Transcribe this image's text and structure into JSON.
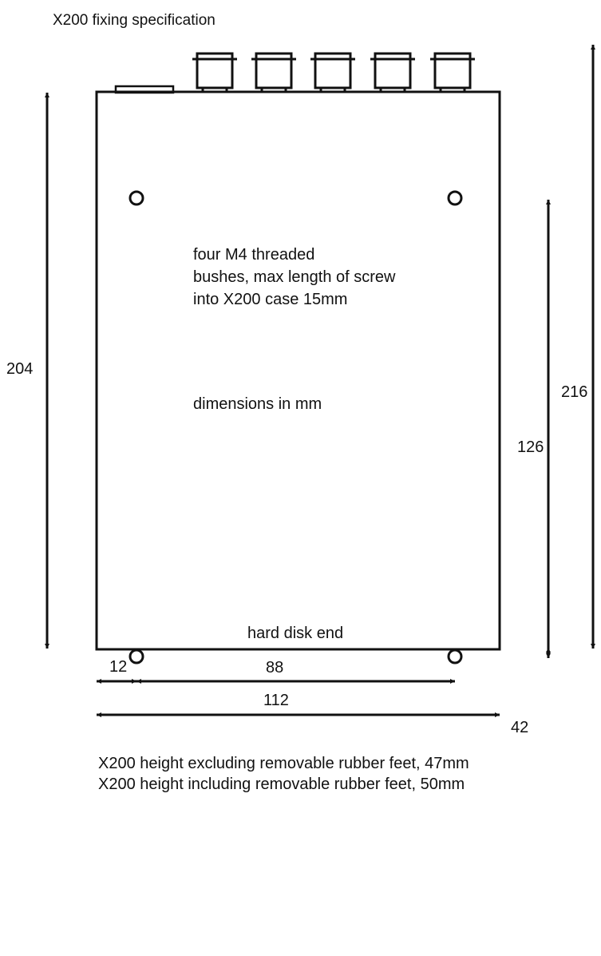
{
  "title": "X200 fixing specification",
  "notes": {
    "bushes": [
      "four M4 threaded",
      "bushes, max length of screw",
      "into X200 case 15mm"
    ],
    "units": "dimensions in mm",
    "end_label": "hard disk end"
  },
  "dimensions": {
    "overall_length": "204",
    "total_length_with_connectors": "216",
    "hole_spacing_length": "126",
    "hole_to_end": "42",
    "hole_inset_width": "12",
    "hole_spacing_width": "88",
    "overall_width": "112"
  },
  "footer": [
    "X200 height excluding removable rubber feet, 47mm",
    "X200 height including removable rubber feet, 50mm"
  ],
  "colors": {
    "line": "#111111",
    "background": "#ffffff"
  },
  "connector_count": 5,
  "mounting_hole_count": 4
}
